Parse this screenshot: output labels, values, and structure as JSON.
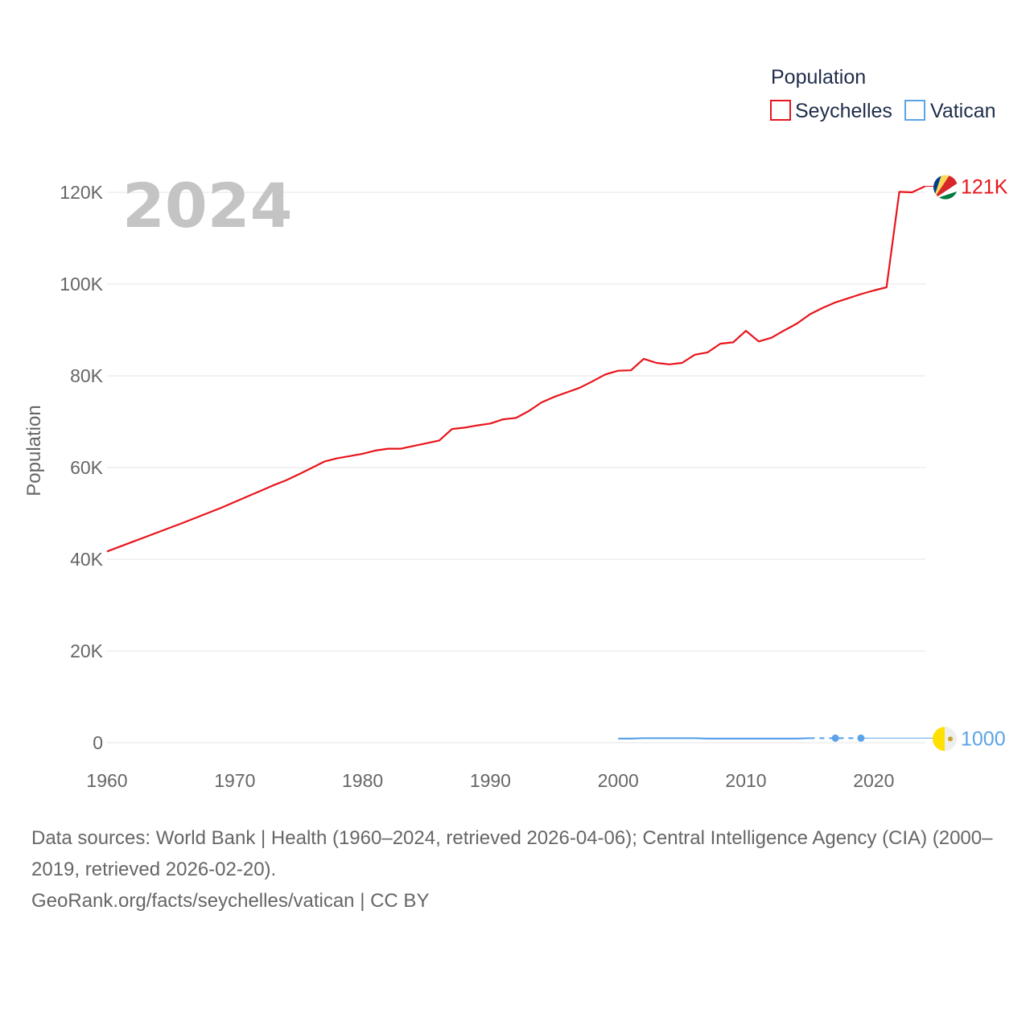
{
  "chart_data": {
    "type": "line",
    "legend_title": "Population",
    "current_year_label": "2024",
    "ylabel": "Population",
    "xlim": [
      1960,
      2025
    ],
    "ylim": [
      0,
      125000
    ],
    "x_ticks": [
      {
        "value": 1960,
        "label": "1960"
      },
      {
        "value": 1970,
        "label": "1970"
      },
      {
        "value": 1980,
        "label": "1980"
      },
      {
        "value": 1990,
        "label": "1990"
      },
      {
        "value": 2000,
        "label": "2000"
      },
      {
        "value": 2010,
        "label": "2010"
      },
      {
        "value": 2020,
        "label": "2020"
      }
    ],
    "y_ticks": [
      {
        "value": 0,
        "label": "0"
      },
      {
        "value": 20000,
        "label": "20K"
      },
      {
        "value": 40000,
        "label": "40K"
      },
      {
        "value": 60000,
        "label": "60K"
      },
      {
        "value": 80000,
        "label": "80K"
      },
      {
        "value": 100000,
        "label": "100K"
      },
      {
        "value": 120000,
        "label": "120K"
      }
    ],
    "series": [
      {
        "name": "Seychelles",
        "color": "#e8141b",
        "end_label": "121K",
        "flag_icon": "seychelles-flag-icon",
        "points": [
          [
            1960,
            41700
          ],
          [
            1961,
            42750
          ],
          [
            1962,
            43800
          ],
          [
            1963,
            44850
          ],
          [
            1964,
            45900
          ],
          [
            1965,
            46950
          ],
          [
            1966,
            48000
          ],
          [
            1967,
            49100
          ],
          [
            1968,
            50200
          ],
          [
            1969,
            51300
          ],
          [
            1970,
            52500
          ],
          [
            1971,
            53700
          ],
          [
            1972,
            54900
          ],
          [
            1973,
            56100
          ],
          [
            1974,
            57200
          ],
          [
            1975,
            58500
          ],
          [
            1976,
            59900
          ],
          [
            1977,
            61300
          ],
          [
            1978,
            62000
          ],
          [
            1979,
            62500
          ],
          [
            1980,
            63000
          ],
          [
            1981,
            63700
          ],
          [
            1982,
            64100
          ],
          [
            1983,
            64100
          ],
          [
            1984,
            64700
          ],
          [
            1985,
            65300
          ],
          [
            1986,
            65900
          ],
          [
            1987,
            68400
          ],
          [
            1988,
            68700
          ],
          [
            1989,
            69200
          ],
          [
            1990,
            69600
          ],
          [
            1991,
            70500
          ],
          [
            1992,
            70800
          ],
          [
            1993,
            72300
          ],
          [
            1994,
            74200
          ],
          [
            1995,
            75400
          ],
          [
            1996,
            76400
          ],
          [
            1997,
            77400
          ],
          [
            1998,
            78800
          ],
          [
            1999,
            80300
          ],
          [
            2000,
            81100
          ],
          [
            2001,
            81200
          ],
          [
            2002,
            83700
          ],
          [
            2003,
            82800
          ],
          [
            2004,
            82500
          ],
          [
            2005,
            82800
          ],
          [
            2006,
            84600
          ],
          [
            2007,
            85100
          ],
          [
            2008,
            87000
          ],
          [
            2009,
            87300
          ],
          [
            2010,
            89800
          ],
          [
            2011,
            87500
          ],
          [
            2012,
            88300
          ],
          [
            2013,
            89900
          ],
          [
            2014,
            91400
          ],
          [
            2015,
            93400
          ],
          [
            2016,
            94800
          ],
          [
            2017,
            96000
          ],
          [
            2018,
            96900
          ],
          [
            2019,
            97800
          ],
          [
            2020,
            98600
          ],
          [
            2021,
            99300
          ],
          [
            2022,
            120100
          ],
          [
            2023,
            120000
          ],
          [
            2024,
            121300
          ]
        ]
      },
      {
        "name": "Vatican",
        "color": "#5ba3e8",
        "end_label": "1000",
        "flag_icon": "vatican-flag-icon",
        "points": [
          [
            2000,
            900
          ],
          [
            2001,
            900
          ],
          [
            2002,
            1000
          ],
          [
            2003,
            1000
          ],
          [
            2004,
            1000
          ],
          [
            2005,
            1000
          ],
          [
            2006,
            1000
          ],
          [
            2007,
            900
          ],
          [
            2008,
            900
          ],
          [
            2009,
            900
          ],
          [
            2010,
            900
          ],
          [
            2011,
            900
          ],
          [
            2012,
            900
          ],
          [
            2013,
            900
          ],
          [
            2014,
            900
          ],
          [
            2015,
            1000
          ],
          [
            2017,
            1000
          ],
          [
            2019,
            1000
          ]
        ],
        "gap_from": 2015,
        "extend_to": 2025
      }
    ]
  },
  "footer": {
    "sources": "Data sources: World Bank | Health (1960–2024, retrieved 2026-04-06); Central Intelligence Agency (CIA) (2000–2019, retrieved 2026-02-20).",
    "credit": "GeoRank.org/facts/seychelles/vatican | CC BY"
  }
}
